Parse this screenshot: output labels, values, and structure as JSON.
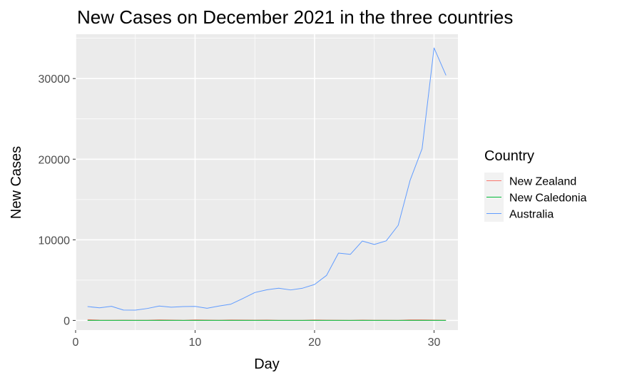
{
  "chart_data": {
    "type": "line",
    "title": "New Cases on December 2021 in the three countries",
    "xlabel": "Day",
    "ylabel": "New Cases",
    "xlim": [
      0,
      32
    ],
    "ylim": [
      -1200,
      35500
    ],
    "x_ticks": [
      0,
      10,
      20,
      30
    ],
    "x_tick_labels": [
      "0",
      "10",
      "20",
      "30"
    ],
    "y_ticks": [
      0,
      10000,
      20000,
      30000
    ],
    "y_tick_labels": [
      "0",
      "10000",
      "20000",
      "30000"
    ],
    "grid": true,
    "legend": {
      "title": "Country",
      "position": "right"
    },
    "x": [
      1,
      2,
      3,
      4,
      5,
      6,
      7,
      8,
      9,
      10,
      11,
      12,
      13,
      14,
      15,
      16,
      17,
      18,
      19,
      20,
      21,
      22,
      23,
      24,
      25,
      26,
      27,
      28,
      29,
      30,
      31
    ],
    "series": [
      {
        "name": "New Zealand",
        "color": "#F8766D",
        "values": [
          96,
          34,
          24,
          41,
          28,
          26,
          69,
          50,
          20,
          73,
          51,
          29,
          61,
          49,
          40,
          51,
          21,
          18,
          16,
          55,
          43,
          24,
          17,
          48,
          24,
          24,
          12,
          66,
          72,
          52,
          25
        ]
      },
      {
        "name": "New Caledonia",
        "color": "#00BA38",
        "values": [
          1,
          0,
          0,
          0,
          0,
          0,
          0,
          0,
          0,
          0,
          0,
          0,
          0,
          0,
          0,
          0,
          0,
          0,
          0,
          0,
          0,
          0,
          0,
          0,
          0,
          0,
          0,
          0,
          0,
          0,
          0
        ]
      },
      {
        "name": "Australia",
        "color": "#619CFF",
        "values": [
          1720,
          1560,
          1750,
          1290,
          1280,
          1480,
          1780,
          1640,
          1720,
          1740,
          1510,
          1780,
          2020,
          2720,
          3460,
          3800,
          4000,
          3780,
          4000,
          4460,
          5580,
          8350,
          8200,
          9850,
          9420,
          9870,
          11800,
          17400,
          21300,
          33800,
          30400
        ]
      }
    ]
  }
}
